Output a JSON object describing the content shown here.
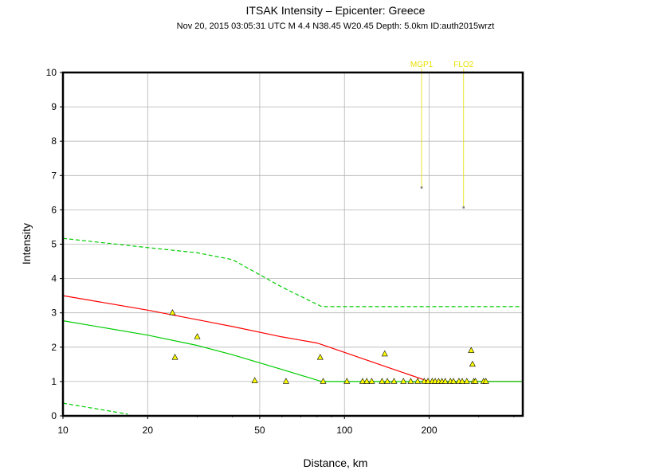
{
  "chart_data": {
    "type": "scatter",
    "title": "ITSAK Intensity –  Epicenter: Greece",
    "subtitle": "Nov 20, 2015 03:05:31 UTC   M 4.4   N38.45 W20.45   Depth: 5.0km   ID:auth2015wrzt",
    "xlabel": "Distance, km",
    "ylabel": "Intensity",
    "x_scale": "log",
    "xlim": [
      10,
      430
    ],
    "ylim": [
      0,
      10
    ],
    "x_ticks": [
      10,
      20,
      50,
      100,
      200
    ],
    "x_tick_labels": [
      "10",
      "20",
      "50",
      "100",
      "200"
    ],
    "y_ticks": [
      0,
      1,
      2,
      3,
      4,
      5,
      6,
      7,
      8,
      9,
      10
    ],
    "y_tick_labels": [
      "0",
      "1",
      "2",
      "3",
      "4",
      "5",
      "6",
      "7",
      "8",
      "9",
      "10"
    ],
    "grid": true,
    "curves": [
      {
        "style": "solid",
        "color": "#ff0000",
        "x": [
          10,
          20,
          30,
          40,
          60,
          80,
          100,
          150,
          200,
          430
        ],
        "y": [
          3.5,
          3.08,
          2.8,
          2.6,
          2.3,
          2.12,
          1.85,
          1.35,
          1.0,
          1.0
        ]
      },
      {
        "style": "solid",
        "color": "#00cc00",
        "x": [
          10,
          20,
          30,
          40,
          60,
          83,
          430
        ],
        "y": [
          2.77,
          2.35,
          2.05,
          1.78,
          1.35,
          1.0,
          1.0
        ]
      },
      {
        "style": "dashed",
        "color": "#00cc00",
        "x": [
          10,
          20,
          30,
          40,
          60,
          83,
          430
        ],
        "y": [
          5.17,
          4.9,
          4.75,
          4.55,
          3.75,
          3.18,
          3.18
        ]
      },
      {
        "style": "dashed",
        "color": "#00cc00",
        "x": [
          10,
          17
        ],
        "y": [
          0.37,
          0.05
        ]
      }
    ],
    "stations": {
      "x": [
        24.5,
        25,
        30,
        48,
        62,
        82,
        84,
        102,
        116,
        120,
        125,
        136,
        139,
        142,
        150,
        162,
        172,
        182,
        192,
        198,
        205,
        210,
        216,
        222,
        228,
        238,
        244,
        255,
        262,
        272,
        282,
        285,
        288,
        292,
        312,
        318
      ],
      "y": [
        3.0,
        1.7,
        2.3,
        1.02,
        1.0,
        1.7,
        1.0,
        1.0,
        1.0,
        1.0,
        1.0,
        1.0,
        1.8,
        1.0,
        1.0,
        1.0,
        1.0,
        1.0,
        1.0,
        1.0,
        1.0,
        1.0,
        1.0,
        1.0,
        1.0,
        1.0,
        1.0,
        1.0,
        1.0,
        1.0,
        1.9,
        1.5,
        1.0,
        1.0,
        1.0,
        1.0
      ],
      "color": "#ffff00",
      "outline": "#000000"
    },
    "labeled_stations": [
      {
        "name": "MGP1",
        "x": 188,
        "y": 6.65,
        "color": "#e8e000"
      },
      {
        "name": "FLO2",
        "x": 265,
        "y": 6.07,
        "color": "#e8e000"
      }
    ]
  }
}
